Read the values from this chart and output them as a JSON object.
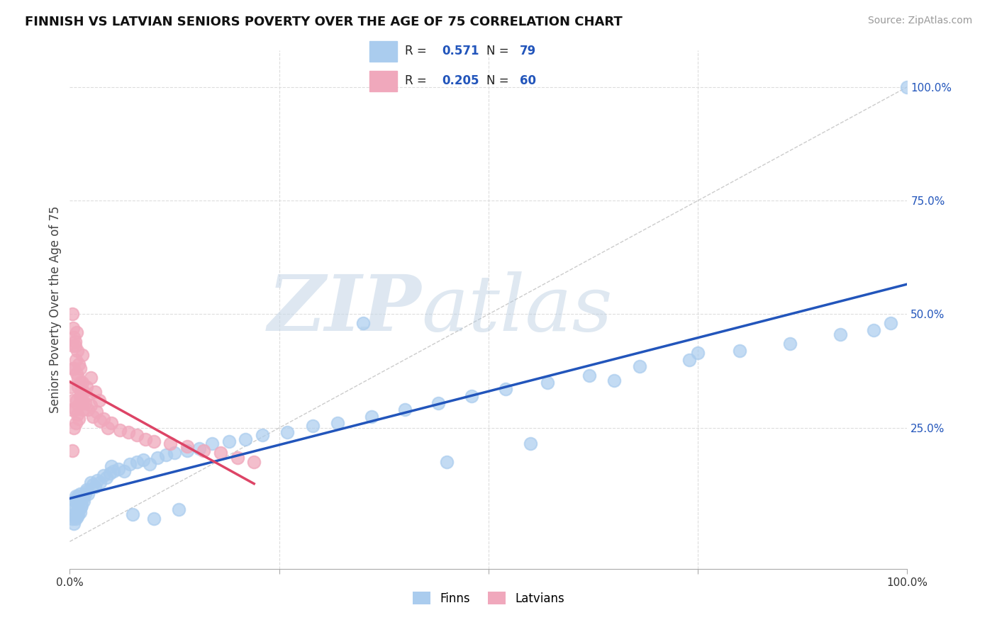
{
  "title": "FINNISH VS LATVIAN SENIORS POVERTY OVER THE AGE OF 75 CORRELATION CHART",
  "source": "Source: ZipAtlas.com",
  "ylabel": "Seniors Poverty Over the Age of 75",
  "xlim": [
    0,
    1
  ],
  "ylim": [
    -0.06,
    1.08
  ],
  "finn_color": "#aaccee",
  "latvian_color": "#f0a8bc",
  "finn_line_color": "#2255bb",
  "latvian_line_color": "#dd4466",
  "diag_color": "#cccccc",
  "grid_color": "#dddddd",
  "R_finn": 0.571,
  "N_finn": 79,
  "R_latvian": 0.205,
  "N_latvian": 60,
  "watermark_zip": "ZIP",
  "watermark_atlas": "atlas",
  "background_color": "#ffffff",
  "title_fontsize": 13,
  "source_fontsize": 10,
  "tick_fontsize": 11,
  "ylabel_fontsize": 12,
  "finn_x": [
    0.003,
    0.004,
    0.005,
    0.005,
    0.006,
    0.006,
    0.007,
    0.007,
    0.008,
    0.008,
    0.009,
    0.009,
    0.01,
    0.01,
    0.011,
    0.011,
    0.012,
    0.012,
    0.013,
    0.013,
    0.014,
    0.015,
    0.016,
    0.017,
    0.018,
    0.019,
    0.02,
    0.022,
    0.025,
    0.028,
    0.03,
    0.033,
    0.036,
    0.04,
    0.044,
    0.048,
    0.052,
    0.058,
    0.065,
    0.072,
    0.08,
    0.088,
    0.095,
    0.105,
    0.115,
    0.125,
    0.14,
    0.155,
    0.17,
    0.19,
    0.21,
    0.23,
    0.26,
    0.29,
    0.32,
    0.36,
    0.4,
    0.44,
    0.48,
    0.52,
    0.57,
    0.62,
    0.68,
    0.74,
    0.8,
    0.86,
    0.92,
    0.96,
    0.98,
    0.35,
    0.45,
    0.55,
    0.65,
    0.75,
    0.05,
    0.075,
    0.1,
    0.13,
    1.0
  ],
  "finn_y": [
    0.05,
    0.07,
    0.04,
    0.08,
    0.06,
    0.09,
    0.05,
    0.1,
    0.065,
    0.095,
    0.055,
    0.085,
    0.06,
    0.1,
    0.07,
    0.09,
    0.065,
    0.105,
    0.075,
    0.095,
    0.08,
    0.1,
    0.095,
    0.09,
    0.105,
    0.11,
    0.115,
    0.105,
    0.13,
    0.125,
    0.12,
    0.135,
    0.13,
    0.145,
    0.14,
    0.15,
    0.155,
    0.16,
    0.155,
    0.17,
    0.175,
    0.18,
    0.17,
    0.185,
    0.19,
    0.195,
    0.2,
    0.205,
    0.215,
    0.22,
    0.225,
    0.235,
    0.24,
    0.255,
    0.26,
    0.275,
    0.29,
    0.305,
    0.32,
    0.335,
    0.35,
    0.365,
    0.385,
    0.4,
    0.42,
    0.435,
    0.455,
    0.465,
    0.48,
    0.48,
    0.175,
    0.215,
    0.355,
    0.415,
    0.165,
    0.06,
    0.05,
    0.07,
    1.0
  ],
  "latvian_x": [
    0.001,
    0.002,
    0.003,
    0.003,
    0.004,
    0.004,
    0.005,
    0.005,
    0.006,
    0.006,
    0.007,
    0.007,
    0.008,
    0.008,
    0.009,
    0.009,
    0.01,
    0.01,
    0.011,
    0.011,
    0.012,
    0.012,
    0.013,
    0.014,
    0.015,
    0.016,
    0.017,
    0.018,
    0.02,
    0.022,
    0.025,
    0.028,
    0.032,
    0.036,
    0.04,
    0.045,
    0.05,
    0.06,
    0.07,
    0.08,
    0.09,
    0.1,
    0.12,
    0.14,
    0.16,
    0.18,
    0.2,
    0.22,
    0.005,
    0.003,
    0.004,
    0.006,
    0.008,
    0.012,
    0.015,
    0.02,
    0.025,
    0.03,
    0.035,
    0.01
  ],
  "latvian_y": [
    0.34,
    0.29,
    0.38,
    0.2,
    0.31,
    0.43,
    0.25,
    0.38,
    0.29,
    0.43,
    0.26,
    0.4,
    0.31,
    0.37,
    0.28,
    0.42,
    0.3,
    0.36,
    0.27,
    0.39,
    0.32,
    0.35,
    0.33,
    0.31,
    0.35,
    0.29,
    0.33,
    0.305,
    0.32,
    0.29,
    0.3,
    0.275,
    0.285,
    0.265,
    0.27,
    0.25,
    0.26,
    0.245,
    0.24,
    0.235,
    0.225,
    0.22,
    0.215,
    0.21,
    0.2,
    0.195,
    0.185,
    0.175,
    0.45,
    0.5,
    0.47,
    0.44,
    0.46,
    0.38,
    0.41,
    0.34,
    0.36,
    0.33,
    0.31,
    0.34
  ]
}
